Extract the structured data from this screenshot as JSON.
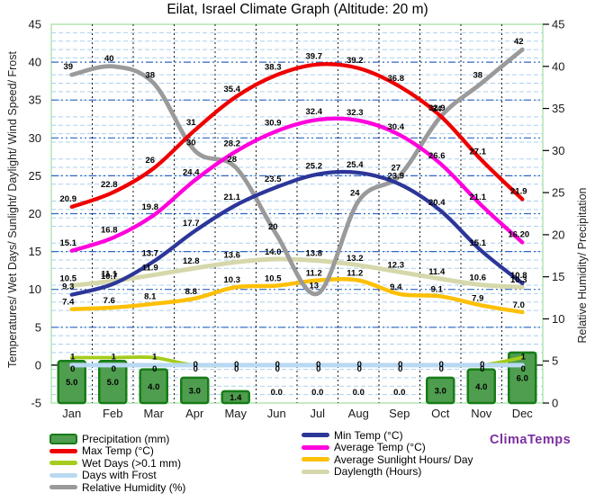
{
  "title": "Eilat, Israel Climate Graph (Altitude: 20 m)",
  "watermark": "ClimaTemps",
  "axes": {
    "left_title": "Temperatures/ Wet Days/ Sunlight/ Daylight/ Wind Speed/ Frost",
    "right_title": "Relative Humidity/ Precipitation",
    "left_ticks": [
      45,
      40,
      35,
      30,
      25,
      20,
      15,
      10,
      5,
      0,
      -5
    ],
    "right_ticks": [
      45,
      40,
      35,
      30,
      25,
      20,
      15,
      10,
      5,
      0
    ],
    "left_range": [
      -5,
      45
    ],
    "right_range": [
      0,
      45
    ]
  },
  "colors": {
    "precipitation_fill": "#4f9d4f",
    "precipitation_border": "#167c16",
    "wet_days": "#a5cc1c",
    "frost": "#b9d9f2",
    "daylength": "#d6d8ac",
    "sunlight": "#fdc006",
    "humidity": "#9a9a9a",
    "min_temp": "#2c3699",
    "avg_temp": "#ff00dd",
    "max_temp": "#ef0000",
    "grid_major": "#2f66c4",
    "grid_minor": "#abd0ee",
    "grid_vertical": "#1a1a1a",
    "frame": "#b2e5b2"
  },
  "chart_data": {
    "type": "mixed line+bar climate graph",
    "categories": [
      "Jan",
      "Feb",
      "Mar",
      "Apr",
      "May",
      "Jun",
      "Jul",
      "Aug",
      "Sep",
      "Oct",
      "Nov",
      "Dec"
    ],
    "xlabel": "",
    "left_axis_range": [
      -5,
      45
    ],
    "right_axis_range": [
      0,
      45
    ],
    "grid": "on",
    "legend_position": "bottom",
    "series": [
      {
        "name": "Precipitation (mm)",
        "type": "bar",
        "axis": "right",
        "color": "#4f9d4f",
        "values": [
          5.0,
          5.0,
          4.0,
          3.0,
          1.4,
          0.0,
          0.0,
          0.0,
          0.0,
          3.0,
          4.0,
          6.0
        ],
        "labels": [
          "5.0",
          "5.0",
          "4.0",
          "3.0",
          "1.4",
          "0.0",
          "0.0",
          "0.0",
          "0.0",
          "3.0",
          "4.0",
          "6.0"
        ]
      },
      {
        "name": "Wet Days (>0.1 mm)",
        "type": "line",
        "axis": "left",
        "color": "#a5cc1c",
        "values": [
          1,
          1,
          1,
          0,
          0,
          0,
          0,
          0,
          0,
          0,
          0,
          1
        ],
        "labels": [
          "1",
          "1",
          "1",
          "0",
          "0",
          "0",
          "0",
          "0",
          "0",
          "0",
          "0",
          "1"
        ]
      },
      {
        "name": "Days with Frost",
        "type": "line",
        "axis": "left",
        "color": "#b9d9f2",
        "values": [
          0,
          0,
          0,
          0,
          0,
          0,
          0,
          0,
          0,
          0,
          0,
          0
        ],
        "labels": [
          "0",
          "0",
          "0",
          "0",
          "0",
          "0",
          "0",
          "0",
          "0",
          "0",
          "0",
          "0"
        ]
      },
      {
        "name": "Daylength (Hours)",
        "type": "line",
        "axis": "left",
        "color": "#d6d8ac",
        "values": [
          10.5,
          11.1,
          11.9,
          12.8,
          13.6,
          14.0,
          13.8,
          13.2,
          12.3,
          11.4,
          10.6,
          10.3
        ],
        "labels": [
          "10.5",
          "11.1",
          "11.9",
          "12.8",
          "13.6",
          "14.0",
          "13.8",
          "13.2",
          "12.3",
          "11.4",
          "10.6",
          "10.3"
        ]
      },
      {
        "name": "Average Sunlight Hours/ Day",
        "type": "line",
        "axis": "left",
        "color": "#fdc006",
        "values": [
          7.4,
          7.6,
          8.1,
          8.8,
          10.3,
          10.5,
          11.2,
          11.2,
          9.4,
          9.1,
          7.9,
          7.0
        ],
        "labels": [
          "7.4",
          "7.6",
          "8.1",
          "8.8",
          "10.3",
          "10.5",
          "11.2",
          "11.2",
          "9.4",
          "9.1",
          "7.9",
          "7.0"
        ]
      },
      {
        "name": "Relative Humidity (%)",
        "type": "line",
        "axis": "right",
        "color": "#9a9a9a",
        "values": [
          39,
          40,
          38,
          30,
          28,
          20,
          13,
          24,
          27,
          34,
          38,
          42
        ],
        "labels": [
          "39",
          "40",
          "38",
          "30",
          "28",
          "20",
          "13",
          "24",
          "27",
          "34",
          "38",
          "42"
        ]
      },
      {
        "name": "Min Temp (°C)",
        "type": "line",
        "axis": "left",
        "color": "#2c3699",
        "values": [
          9.3,
          10.7,
          13.7,
          17.7,
          21.1,
          23.5,
          25.2,
          25.4,
          23.9,
          20.4,
          15.1,
          10.8
        ],
        "labels": [
          "9.3",
          "10.7",
          "13.7",
          "17.7",
          "21.1",
          "23.5",
          "25.2",
          "25.4",
          "23.9",
          "20.4",
          "15.1",
          "10.8"
        ]
      },
      {
        "name": "Average Temp (°C)",
        "type": "line",
        "axis": "left",
        "color": "#ff00dd",
        "values": [
          15.1,
          16.8,
          19.8,
          24.4,
          28.2,
          30.9,
          32.4,
          32.3,
          30.4,
          26.6,
          21.1,
          16.2
        ],
        "labels": [
          "15.1",
          "16.8",
          "19.8",
          "24.4",
          "28.2",
          "30.9",
          "32.4",
          "32.3",
          "30.4",
          "26.6",
          "21.1",
          "16.20"
        ]
      },
      {
        "name": "Max Temp (°C)",
        "type": "line",
        "axis": "left",
        "color": "#ef0000",
        "values": [
          20.9,
          22.8,
          26,
          31,
          35.4,
          38.3,
          39.7,
          39.2,
          36.8,
          32.9,
          27.1,
          21.9
        ],
        "labels": [
          "20.9",
          "22.8",
          "26",
          "31",
          "35.4",
          "38.3",
          "39.7",
          "39.2",
          "36.8",
          "32.9",
          "27.1",
          "21.9"
        ]
      }
    ]
  },
  "legend": {
    "left_column_series": [
      0,
      8,
      1,
      2,
      5
    ],
    "right_column_series": [
      6,
      7,
      4,
      3
    ]
  }
}
